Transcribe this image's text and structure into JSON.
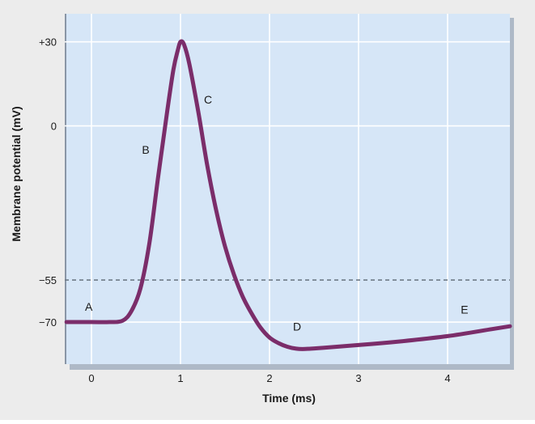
{
  "chart_data": {
    "type": "line",
    "title": "",
    "xlabel": "Time (ms)",
    "ylabel": "Membrane potential (mV)",
    "xlim": [
      -0.3,
      4.7
    ],
    "ylim": [
      -85,
      40
    ],
    "x_ticks": [
      0,
      1,
      2,
      3,
      4
    ],
    "x_tick_labels": [
      "0",
      "1",
      "2",
      "3",
      "4"
    ],
    "y_ticks": [
      30,
      0,
      -55,
      -70
    ],
    "y_tick_labels": [
      "+30",
      "0",
      "−55",
      "−70"
    ],
    "grid": true,
    "threshold": {
      "value": -55,
      "style": "dashed"
    },
    "series": [
      {
        "x": [
          -0.28,
          0.0,
          0.2,
          0.35,
          0.45,
          0.55,
          0.65,
          0.75,
          0.85,
          0.92,
          0.97,
          1.0,
          1.04,
          1.1,
          1.2,
          1.3,
          1.4,
          1.5,
          1.6,
          1.7,
          1.8,
          1.9,
          2.0,
          2.1,
          2.2,
          2.3,
          2.4,
          2.6,
          3.0,
          3.5,
          4.0,
          4.5,
          4.7
        ],
        "y": [
          -70,
          -70,
          -70,
          -69.5,
          -66,
          -58,
          -42,
          -18,
          5,
          20,
          27,
          30,
          29,
          22,
          5,
          -14,
          -30,
          -43,
          -53,
          -61,
          -67,
          -72,
          -75.5,
          -77.5,
          -78.8,
          -79.5,
          -79.6,
          -79.2,
          -78.2,
          -76.8,
          -75,
          -72.5,
          -71.5
        ]
      }
    ],
    "annotations": [
      {
        "text": "A",
        "x": -0.03,
        "y": -66
      },
      {
        "text": "B",
        "x": 0.61,
        "y": -10
      },
      {
        "text": "C",
        "x": 1.31,
        "y": 8
      },
      {
        "text": "D",
        "x": 2.31,
        "y": -73
      },
      {
        "text": "E",
        "x": 4.19,
        "y": -67
      }
    ],
    "colors": {
      "line": "#7b2d6a",
      "plot_bg": "#d6e6f7",
      "grid": "#ffffff",
      "threshold": "#6f7b87",
      "axis": "#8a96a6",
      "text": "#1a1a1a"
    }
  }
}
